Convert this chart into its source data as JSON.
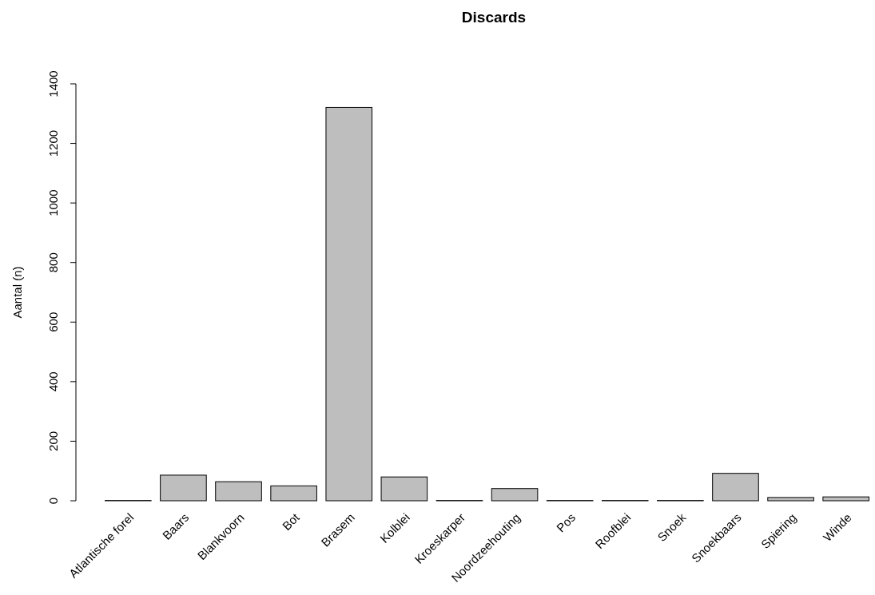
{
  "chart_data": {
    "type": "bar",
    "title": "Discards",
    "ylabel": "Aantal (n)",
    "categories": [
      "Atlantische forel",
      "Baars",
      "Blankvoorn",
      "Bot",
      "Brasem",
      "Kolblei",
      "Kroeskarper",
      "Noordzeehouting",
      "Pos",
      "Roofblei",
      "Snoek",
      "Snoekbaars",
      "Spiering",
      "Winde"
    ],
    "values": [
      1,
      86,
      64,
      50,
      1321,
      80,
      1,
      41,
      1,
      1,
      1,
      92,
      11,
      13
    ],
    "color": "#bebebe",
    "ylim": [
      0,
      1400
    ],
    "yticks": [
      0,
      200,
      400,
      600,
      800,
      1000,
      1200,
      1400
    ],
    "grid": false
  }
}
